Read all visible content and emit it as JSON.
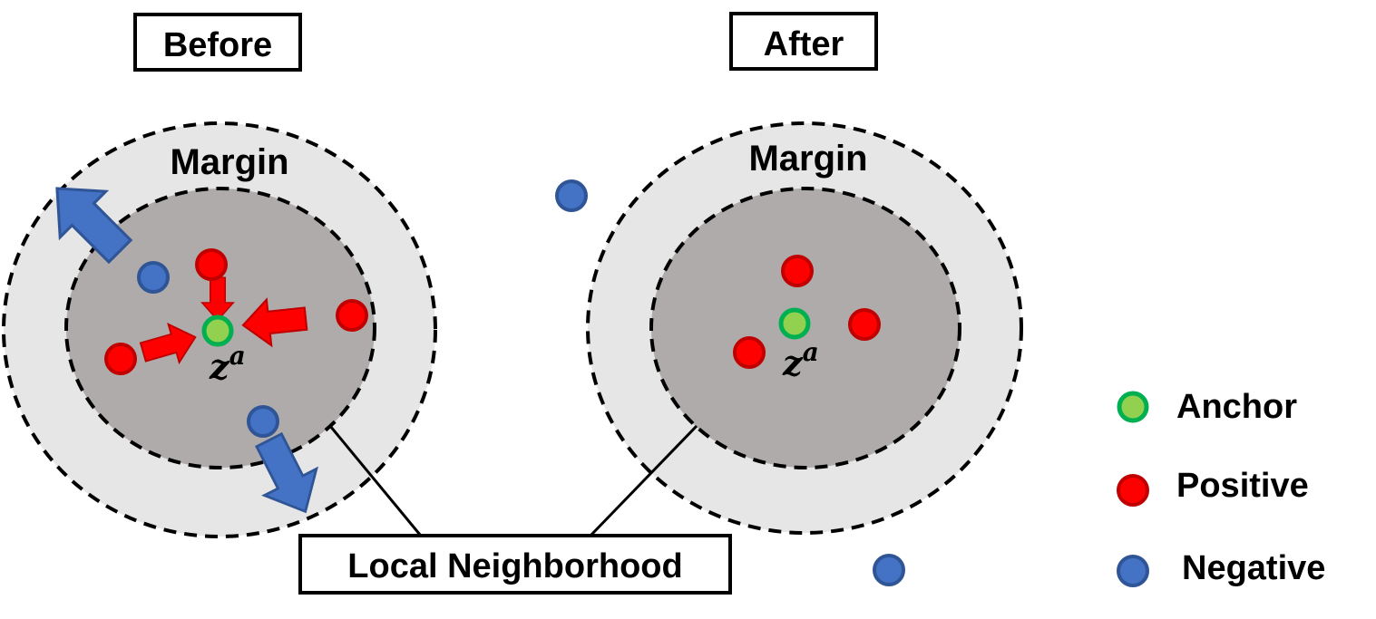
{
  "panels": {
    "before": {
      "title": "Before",
      "margin_label": "Margin",
      "anchor_label_base": "z",
      "anchor_label_sup": "a"
    },
    "after": {
      "title": "After",
      "margin_label": "Margin",
      "anchor_label_base": "z",
      "anchor_label_sup": "a"
    }
  },
  "callout": {
    "label": "Local Neighborhood"
  },
  "legend": {
    "anchor": "Anchor",
    "positive": "Positive",
    "negative": "Negative"
  },
  "colors": {
    "anchor_fill": "#92d050",
    "anchor_stroke": "#00b050",
    "positive_fill": "#ff0000",
    "positive_stroke": "#c00000",
    "negative_fill": "#4472c4",
    "negative_stroke": "#2f5597",
    "outer_region": "#e7e6e6",
    "inner_region": "#afabab",
    "pull_arrow": "#ff0000",
    "push_arrow": "#4472c4"
  }
}
